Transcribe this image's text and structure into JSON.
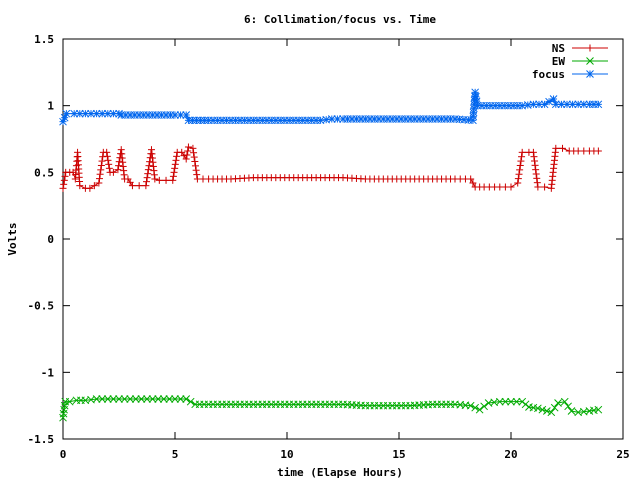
{
  "chart_data": {
    "type": "line",
    "title": "6: Collimation/focus vs. Time",
    "xlabel": "time (Elapse Hours)",
    "ylabel": "Volts",
    "xlim": [
      0,
      25
    ],
    "ylim": [
      -1.5,
      1.5
    ],
    "xticks": [
      0,
      5,
      10,
      15,
      20,
      25
    ],
    "xtick_labels": [
      "0",
      "5",
      "10",
      "15",
      "20",
      "25"
    ],
    "yticks": [
      -1.5,
      -1,
      -0.5,
      0,
      0.5,
      1,
      1.5
    ],
    "ytick_labels": [
      "-1.5",
      "-1",
      "-0.5",
      "0",
      "0.5",
      "1",
      "1.5"
    ],
    "grid": false,
    "legend_position": "top-right",
    "series": [
      {
        "name": "NS",
        "color": "#cc0000",
        "marker": "plus",
        "x": [
          0.0,
          0.12,
          0.3,
          0.45,
          0.55,
          0.65,
          0.75,
          1.0,
          1.2,
          1.4,
          1.6,
          1.8,
          1.95,
          2.1,
          2.25,
          2.45,
          2.6,
          2.75,
          2.9,
          3.1,
          3.4,
          3.7,
          3.95,
          4.1,
          4.3,
          4.6,
          4.9,
          5.1,
          5.3,
          5.5,
          5.6,
          5.8,
          6.0,
          6.5,
          7.5,
          8.5,
          9.5,
          10.5,
          11.5,
          12.5,
          13.5,
          14.5,
          15.5,
          16.5,
          17.5,
          18.2,
          18.4,
          18.8,
          19.5,
          20.0,
          20.3,
          20.5,
          20.8,
          21.0,
          21.2,
          21.5,
          21.8,
          22.0,
          22.3,
          22.6,
          23.0,
          23.5,
          23.9
        ],
        "y": [
          0.38,
          0.5,
          0.5,
          0.5,
          0.45,
          0.65,
          0.4,
          0.38,
          0.38,
          0.4,
          0.42,
          0.65,
          0.65,
          0.5,
          0.5,
          0.52,
          0.67,
          0.45,
          0.45,
          0.4,
          0.4,
          0.4,
          0.67,
          0.45,
          0.44,
          0.44,
          0.44,
          0.65,
          0.65,
          0.6,
          0.69,
          0.68,
          0.45,
          0.45,
          0.45,
          0.46,
          0.46,
          0.46,
          0.46,
          0.46,
          0.45,
          0.45,
          0.45,
          0.45,
          0.45,
          0.45,
          0.39,
          0.39,
          0.39,
          0.39,
          0.42,
          0.65,
          0.65,
          0.65,
          0.39,
          0.39,
          0.38,
          0.68,
          0.68,
          0.66,
          0.66,
          0.66,
          0.66
        ]
      },
      {
        "name": "EW",
        "color": "#00aa00",
        "marker": "cross",
        "x": [
          0.0,
          0.1,
          0.3,
          0.6,
          1.0,
          1.5,
          2.0,
          2.5,
          3.0,
          3.5,
          4.0,
          4.5,
          5.0,
          5.5,
          5.9,
          6.5,
          7.5,
          8.5,
          9.5,
          10.5,
          11.5,
          12.5,
          13.5,
          14.5,
          15.5,
          16.5,
          17.5,
          18.2,
          18.6,
          19.0,
          19.5,
          20.0,
          20.5,
          20.8,
          21.2,
          21.6,
          21.8,
          22.1,
          22.4,
          22.7,
          23.0,
          23.5,
          23.9
        ],
        "y": [
          -1.34,
          -1.22,
          -1.22,
          -1.21,
          -1.21,
          -1.2,
          -1.2,
          -1.2,
          -1.2,
          -1.2,
          -1.2,
          -1.2,
          -1.2,
          -1.2,
          -1.24,
          -1.24,
          -1.24,
          -1.24,
          -1.24,
          -1.24,
          -1.24,
          -1.24,
          -1.25,
          -1.25,
          -1.25,
          -1.24,
          -1.24,
          -1.25,
          -1.28,
          -1.23,
          -1.22,
          -1.22,
          -1.22,
          -1.26,
          -1.27,
          -1.29,
          -1.3,
          -1.23,
          -1.22,
          -1.29,
          -1.3,
          -1.29,
          -1.28
        ]
      },
      {
        "name": "focus",
        "color": "#0066ee",
        "marker": "star",
        "x": [
          0.0,
          0.15,
          0.5,
          1.0,
          1.5,
          2.0,
          2.5,
          2.6,
          3.0,
          4.0,
          5.0,
          5.5,
          5.6,
          6.5,
          7.5,
          8.5,
          9.5,
          10.5,
          11.5,
          12.0,
          12.5,
          13.5,
          14.5,
          15.5,
          16.5,
          17.5,
          18.3,
          18.4,
          18.5,
          18.7,
          19.5,
          20.5,
          21.0,
          21.5,
          21.9,
          22.0,
          22.5,
          23.0,
          23.5,
          23.9
        ],
        "y": [
          0.88,
          0.94,
          0.94,
          0.94,
          0.94,
          0.94,
          0.94,
          0.93,
          0.93,
          0.93,
          0.93,
          0.93,
          0.89,
          0.89,
          0.89,
          0.89,
          0.89,
          0.89,
          0.89,
          0.9,
          0.9,
          0.9,
          0.9,
          0.9,
          0.9,
          0.9,
          0.89,
          1.1,
          1.0,
          1.0,
          1.0,
          1.0,
          1.01,
          1.01,
          1.05,
          1.01,
          1.01,
          1.01,
          1.01,
          1.01
        ]
      }
    ]
  }
}
